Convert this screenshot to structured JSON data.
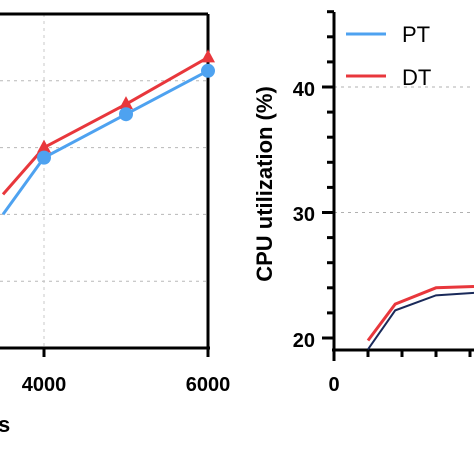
{
  "colors": {
    "pt": "#4ea2f0",
    "dt": "#e8373c",
    "axis": "#000000",
    "grid": "#b0b0b0",
    "right_pt": "#1a2a5a"
  },
  "chart_data": [
    {
      "type": "line",
      "title": "",
      "xlabel": "s",
      "ylabel": "",
      "xlim": [
        3000,
        6000
      ],
      "ylim": [
        0,
        5
      ],
      "x_ticks": [
        "4000",
        "6000"
      ],
      "y_grid": [
        1,
        2,
        3,
        4
      ],
      "series": [
        {
          "name": "PT",
          "marker": "circle",
          "x": [
            3500,
            4000,
            5000,
            6000
          ],
          "y": [
            2.0,
            2.85,
            3.5,
            4.15
          ]
        },
        {
          "name": "DT",
          "marker": "triangle",
          "x": [
            3500,
            4000,
            5000,
            6000
          ],
          "y": [
            2.3,
            3.0,
            3.65,
            4.35
          ]
        }
      ]
    },
    {
      "type": "line",
      "title": "",
      "xlabel": "",
      "ylabel": "CPU utilization (%)",
      "xlim": [
        0,
        6
      ],
      "ylim": [
        19,
        46
      ],
      "x_ticks": [
        "0"
      ],
      "y_ticks": [
        "20",
        "30",
        "40"
      ],
      "legend_position": "top-left",
      "legend": [
        "PT",
        "DT"
      ],
      "series": [
        {
          "name": "PT",
          "x": [
            1.0,
            1.8,
            3.0
          ],
          "y": [
            19.1,
            22.2,
            23.4
          ]
        },
        {
          "name": "DT",
          "x": [
            1.0,
            1.8,
            3.0
          ],
          "y": [
            19.8,
            22.7,
            24.0
          ]
        }
      ]
    }
  ]
}
